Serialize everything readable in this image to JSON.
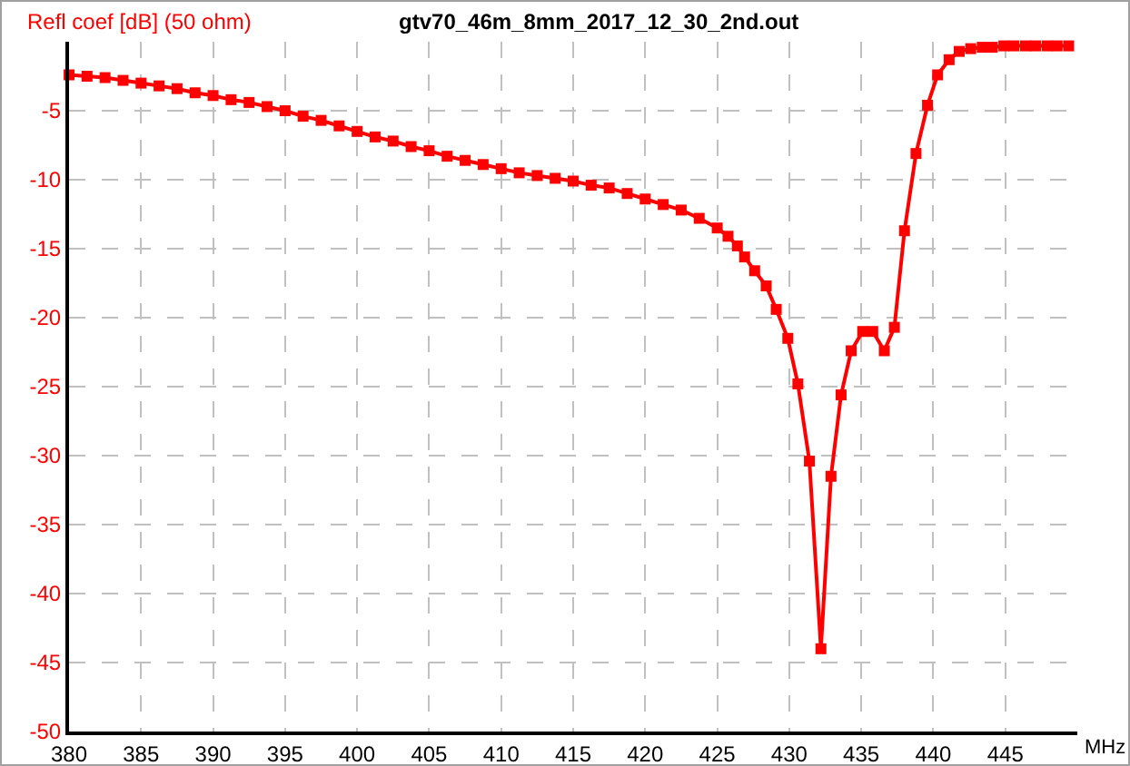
{
  "chart_data": {
    "type": "line",
    "title": "gtv70_46m_8mm_2017_12_30_2nd.out",
    "ylabel": "Refl coef [dB] (50 ohm)",
    "xlabel": "MHz",
    "x": [
      380,
      381.25,
      382.5,
      383.75,
      385,
      386.25,
      387.5,
      388.75,
      390,
      391.25,
      392.5,
      393.75,
      395,
      396.25,
      397.5,
      398.75,
      400,
      401.25,
      402.5,
      403.75,
      405,
      406.25,
      407.5,
      408.75,
      410,
      411.25,
      412.5,
      413.75,
      415,
      416.25,
      417.5,
      418.75,
      420,
      421.25,
      422.5,
      423.75,
      425,
      425.75,
      426.4,
      426.9,
      427.6,
      428.4,
      429.1,
      429.9,
      430.6,
      431.4,
      432.2,
      432.9,
      433.6,
      434.3,
      435.1,
      435.8,
      436.6,
      437.3,
      438,
      438.8,
      439.6,
      440.3,
      441.1,
      441.8,
      442.6,
      443.4,
      444.1,
      444.9,
      445.6,
      446.4,
      447.1,
      447.9,
      448.6,
      449.4
    ],
    "series": [
      {
        "color": "#ff0000",
        "values": [
          -2.4,
          -2.5,
          -2.6,
          -2.8,
          -3,
          -3.2,
          -3.4,
          -3.7,
          -3.9,
          -4.2,
          -4.4,
          -4.7,
          -5,
          -5.4,
          -5.7,
          -6.1,
          -6.5,
          -6.9,
          -7.2,
          -7.6,
          -7.9,
          -8.3,
          -8.6,
          -8.9,
          -9.2,
          -9.5,
          -9.7,
          -9.9,
          -10.1,
          -10.4,
          -10.6,
          -11,
          -11.4,
          -11.8,
          -12.2,
          -12.8,
          -13.5,
          -14.1,
          -14.8,
          -15.6,
          -16.6,
          -17.7,
          -19.4,
          -21.5,
          -24.8,
          -30.4,
          -44,
          -31.5,
          -25.6,
          -22.4,
          -21,
          -21,
          -22.4,
          -20.7,
          -13.7,
          -8.1,
          -4.6,
          -2.4,
          -1.3,
          -0.7,
          -0.5,
          -0.4,
          -0.4,
          -0.3,
          -0.3,
          -0.3,
          -0.3,
          -0.3,
          -0.3,
          -0.3
        ]
      }
    ],
    "xlim": [
      380,
      450
    ],
    "xticks": [
      380,
      385,
      390,
      395,
      400,
      405,
      410,
      415,
      420,
      425,
      430,
      435,
      440,
      445
    ],
    "ylim": [
      -50,
      0
    ],
    "yticks": [
      -50,
      -45,
      -40,
      -35,
      -30,
      -25,
      -20,
      -15,
      -10,
      -5
    ],
    "grid": true,
    "marker": "square",
    "line_style": "solid"
  }
}
